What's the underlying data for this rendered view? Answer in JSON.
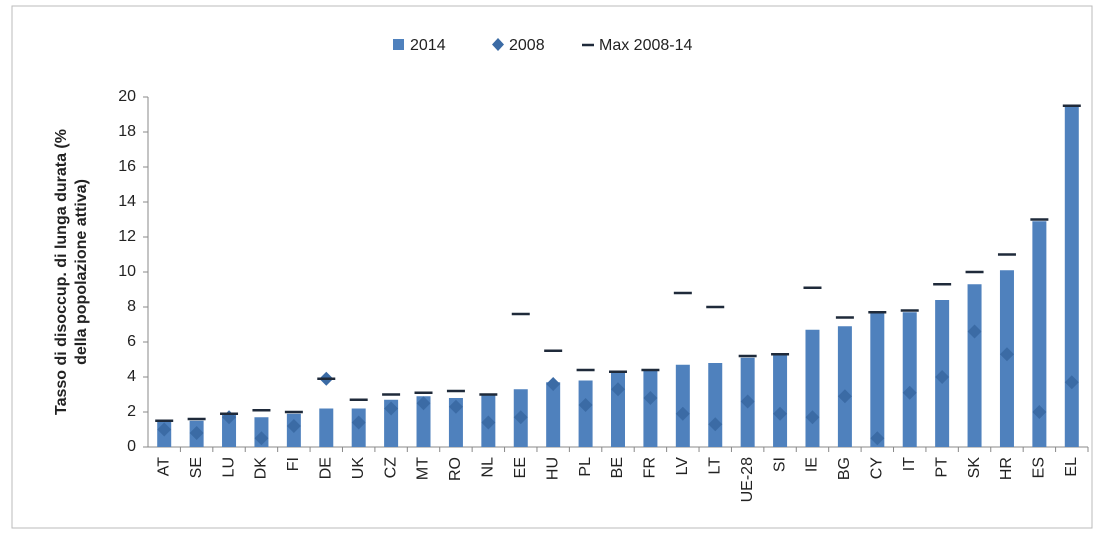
{
  "chart_data": {
    "type": "bar",
    "ylabel": [
      "Tasso di disoccup. di lunga durata (%",
      "della  popolazione attiva)"
    ],
    "categories": [
      "AT",
      "SE",
      "LU",
      "DK",
      "FI",
      "DE",
      "UK",
      "CZ",
      "MT",
      "RO",
      "NL",
      "EE",
      "HU",
      "PL",
      "BE",
      "FR",
      "LV",
      "LT",
      "UE-28",
      "SI",
      "IE",
      "BG",
      "CY",
      "IT",
      "PT",
      "SK",
      "HR",
      "ES",
      "EL"
    ],
    "series": [
      {
        "name": "2014",
        "mark": "bar",
        "color": "#4f81bd",
        "values": [
          1.5,
          1.5,
          1.9,
          1.7,
          1.9,
          2.2,
          2.2,
          2.7,
          2.9,
          2.8,
          3.0,
          3.3,
          3.7,
          3.8,
          4.3,
          4.4,
          4.7,
          4.8,
          5.1,
          5.3,
          6.7,
          6.9,
          7.7,
          7.7,
          8.4,
          9.3,
          10.1,
          12.9,
          19.5
        ]
      },
      {
        "name": "2008",
        "mark": "diamond",
        "color": "#3b6ba5",
        "values": [
          1.0,
          0.8,
          1.7,
          0.5,
          1.2,
          3.9,
          1.4,
          2.2,
          2.5,
          2.3,
          1.4,
          1.7,
          3.6,
          2.4,
          3.3,
          2.8,
          1.9,
          1.3,
          2.6,
          1.9,
          1.7,
          2.9,
          0.5,
          3.1,
          4.0,
          6.6,
          5.3,
          2.0,
          3.7
        ]
      },
      {
        "name": "Max 2008-14",
        "mark": "dash",
        "color": "#1f2a3a",
        "values": [
          1.5,
          1.6,
          1.9,
          2.1,
          2.0,
          3.9,
          2.7,
          3.0,
          3.1,
          3.2,
          3.0,
          7.6,
          5.5,
          4.4,
          4.3,
          4.4,
          8.8,
          8.0,
          5.2,
          5.3,
          9.1,
          7.4,
          7.7,
          7.8,
          9.3,
          10.0,
          11.0,
          13.0,
          19.5
        ]
      }
    ],
    "ylim": [
      0,
      20
    ],
    "yticks": [
      0,
      2,
      4,
      6,
      8,
      10,
      12,
      14,
      16,
      18,
      20
    ],
    "grid": false
  }
}
